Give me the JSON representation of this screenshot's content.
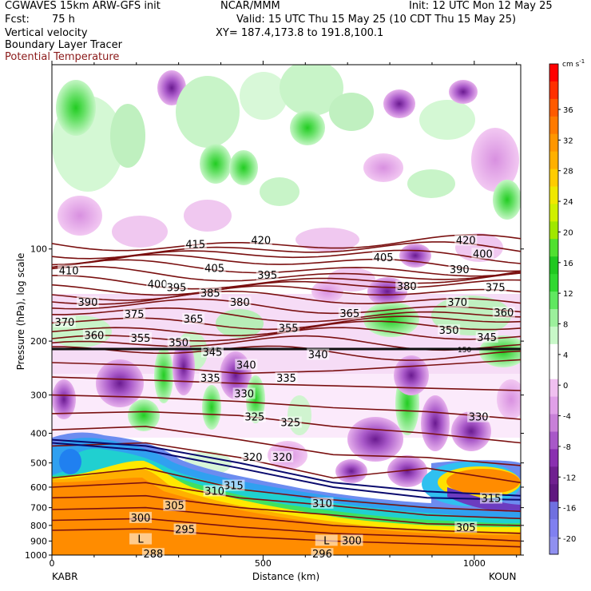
{
  "header": {
    "model": "CGWAVES 15km ARW-GFS init",
    "org": "NCAR/MMM",
    "init": "Init: 12 UTC Mon 12 May 25",
    "fcst_label": "Fcst:",
    "fcst_value": "75 h",
    "valid": "Valid: 15 UTC Thu 15 May 25 (10 CDT Thu 15 May 25)",
    "field1": "Vertical velocity",
    "field2": "Boundary Layer Tracer",
    "field3": "Potential Temperature",
    "xy": "XY= 187.4,173.8 to 191.8,100.1"
  },
  "colors": {
    "theta_line": "#7a1010",
    "theta_label_text": "#a02020",
    "pbl_line": "#0a0a6e"
  },
  "chart_data": {
    "type": "cross-section contour",
    "x_axis": {
      "label": "Distance (km)",
      "range": [
        0,
        1110
      ],
      "ticks": [
        0,
        500,
        1000
      ],
      "left_end_label": "KABR",
      "right_end_label": "KOUN"
    },
    "y_axis": {
      "label": "Pressure (hPa), log scale",
      "scale": "log",
      "range": [
        1000,
        25
      ],
      "ticks": [
        100,
        200,
        300,
        400,
        500,
        600,
        700,
        800,
        900,
        1000
      ]
    },
    "colorbar": {
      "unit": "cm s",
      "unit_exp": "-1",
      "labels": [
        36,
        32,
        28,
        24,
        20,
        16,
        12,
        8,
        4,
        0,
        -4,
        -8,
        -12,
        -16,
        -20
      ],
      "colors_top_to_bottom": [
        "#ff0000",
        "#ff3000",
        "#ff5a00",
        "#ff7a00",
        "#ff9600",
        "#ffb000",
        "#ffcc00",
        "#f0e800",
        "#d0f000",
        "#a0e800",
        "#50e030",
        "#20c820",
        "#30d830",
        "#60e860",
        "#9cf09c",
        "#c8f8c8",
        "#ffffff",
        "#ffffff",
        "#f0c0f0",
        "#e0a0e8",
        "#c880d8",
        "#a858c8",
        "#8a30b0",
        "#702090",
        "#601880",
        "#7070e0",
        "#8080f0",
        "#9090f0"
      ]
    },
    "tropopause_label": "150",
    "theta_label_series": "Potential Temperature",
    "theta_labels": [
      {
        "text": "415",
        "x": 340,
        "p": 97
      },
      {
        "text": "420",
        "x": 495,
        "p": 94
      },
      {
        "text": "420",
        "x": 980,
        "p": 94
      },
      {
        "text": "410",
        "x": 40,
        "p": 118
      },
      {
        "text": "405",
        "x": 385,
        "p": 116
      },
      {
        "text": "405",
        "x": 785,
        "p": 107
      },
      {
        "text": "400",
        "x": 1020,
        "p": 104
      },
      {
        "text": "400",
        "x": 250,
        "p": 131
      },
      {
        "text": "395",
        "x": 510,
        "p": 122
      },
      {
        "text": "395",
        "x": 295,
        "p": 134
      },
      {
        "text": "390",
        "x": 85,
        "p": 150
      },
      {
        "text": "390",
        "x": 965,
        "p": 117
      },
      {
        "text": "385",
        "x": 375,
        "p": 140
      },
      {
        "text": "380",
        "x": 445,
        "p": 150
      },
      {
        "text": "380",
        "x": 840,
        "p": 133
      },
      {
        "text": "375",
        "x": 1050,
        "p": 134
      },
      {
        "text": "375",
        "x": 195,
        "p": 164
      },
      {
        "text": "370",
        "x": 30,
        "p": 174
      },
      {
        "text": "370",
        "x": 960,
        "p": 150
      },
      {
        "text": "365",
        "x": 335,
        "p": 170
      },
      {
        "text": "365",
        "x": 705,
        "p": 163
      },
      {
        "text": "360",
        "x": 100,
        "p": 192
      },
      {
        "text": "360",
        "x": 1070,
        "p": 162
      },
      {
        "text": "355",
        "x": 210,
        "p": 196
      },
      {
        "text": "355",
        "x": 560,
        "p": 182
      },
      {
        "text": "350",
        "x": 300,
        "p": 203
      },
      {
        "text": "350",
        "x": 940,
        "p": 185
      },
      {
        "text": "345",
        "x": 380,
        "p": 218
      },
      {
        "text": "345",
        "x": 1030,
        "p": 195
      },
      {
        "text": "340",
        "x": 460,
        "p": 240
      },
      {
        "text": "340",
        "x": 630,
        "p": 222
      },
      {
        "text": "335",
        "x": 375,
        "p": 265
      },
      {
        "text": "335",
        "x": 555,
        "p": 265
      },
      {
        "text": "330",
        "x": 455,
        "p": 298
      },
      {
        "text": "330",
        "x": 1010,
        "p": 355
      },
      {
        "text": "325",
        "x": 480,
        "p": 355
      },
      {
        "text": "325",
        "x": 565,
        "p": 370
      },
      {
        "text": "320",
        "x": 475,
        "p": 480
      },
      {
        "text": "320",
        "x": 545,
        "p": 480
      },
      {
        "text": "315",
        "x": 430,
        "p": 595
      },
      {
        "text": "315",
        "x": 1040,
        "p": 655
      },
      {
        "text": "310",
        "x": 385,
        "p": 620
      },
      {
        "text": "310",
        "x": 640,
        "p": 680
      },
      {
        "text": "305",
        "x": 290,
        "p": 692
      },
      {
        "text": "305",
        "x": 980,
        "p": 815
      },
      {
        "text": "300",
        "x": 210,
        "p": 758
      },
      {
        "text": "300",
        "x": 710,
        "p": 900
      },
      {
        "text": "295",
        "x": 315,
        "p": 828
      },
      {
        "text": "288",
        "x": 240,
        "p": 995
      },
      {
        "text": "296",
        "x": 640,
        "p": 995
      },
      {
        "text": "L",
        "x": 210,
        "p": 890
      },
      {
        "text": "L",
        "x": 650,
        "p": 900
      }
    ]
  }
}
